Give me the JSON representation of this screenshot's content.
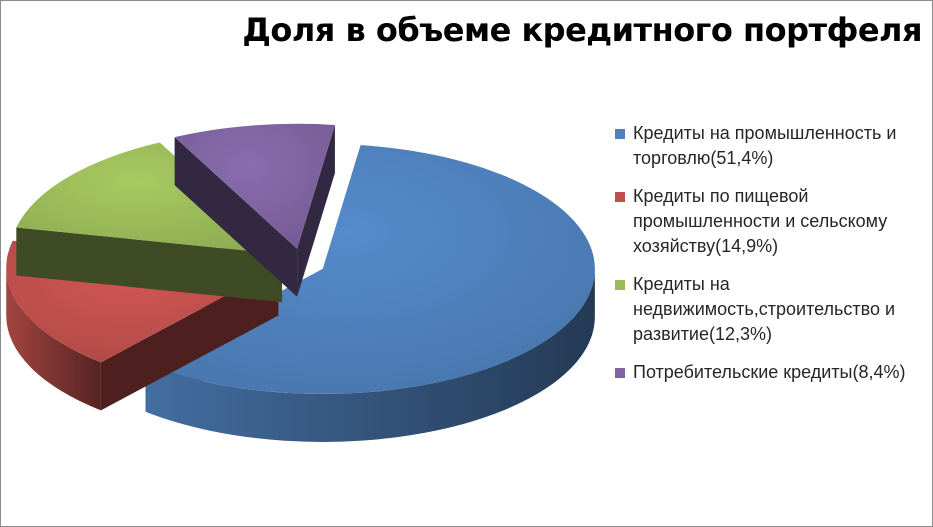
{
  "chart_data": {
    "type": "pie",
    "title": "Доля в объеме кредитного портфеля",
    "categories": [
      "Кредиты на промышленность и торговлю(51,4%)",
      "Кредиты по пищевой промышленности и сельскому хозяйству(14,9%)",
      "Кредиты на недвижимость,строительство и развитие(12,3%)",
      "Потребительские кредиты(8,4%)"
    ],
    "values": [
      51.4,
      14.9,
      12.3,
      8.4
    ],
    "colors": [
      "#4f81bd",
      "#c0504d",
      "#9bbb59",
      "#8064a2"
    ],
    "legend": "right",
    "exploded": true
  }
}
